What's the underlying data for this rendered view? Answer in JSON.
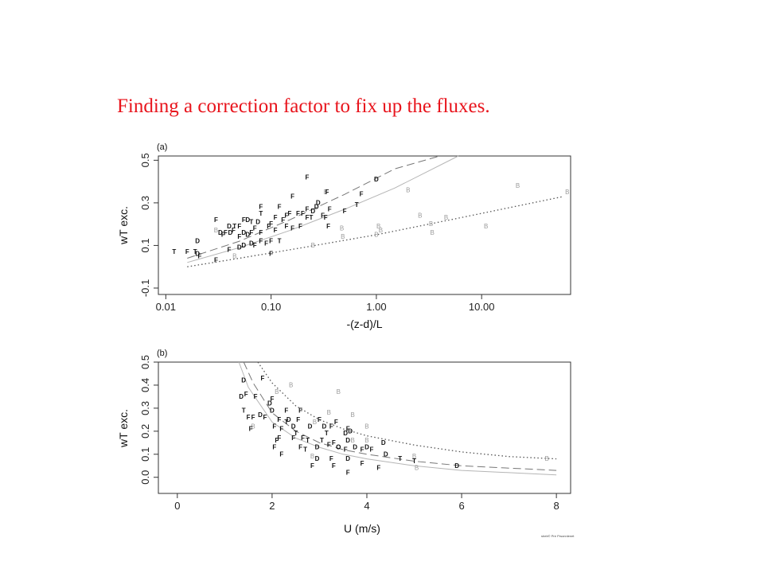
{
  "slide": {
    "title": "Finding a correction factor to fix up the fluxes.",
    "credit": "sheb© Pre Prsonnlenet"
  },
  "chart_data": [
    {
      "type": "scatter",
      "panel_label": "(a)",
      "xlabel": "-(z-d)/L",
      "ylabel": "wT exc.",
      "xscale": "log",
      "xlim": [
        0.0085,
        70
      ],
      "ylim": [
        -0.13,
        0.52
      ],
      "xticks": [
        0.01,
        0.1,
        1,
        10
      ],
      "xtick_labels": [
        "0.01",
        "0.10",
        "1.00",
        "10.00"
      ],
      "yticks": [
        -0.1,
        0.1,
        0.3,
        0.5
      ],
      "ytick_labels": [
        "-0.1",
        "0.1",
        "0.3",
        "0.5"
      ],
      "curves": [
        {
          "style": "dashed",
          "x": [
            0.016,
            0.05,
            0.15,
            0.5,
            1.5,
            4.0
          ],
          "y": [
            0.04,
            0.12,
            0.22,
            0.34,
            0.46,
            0.56
          ]
        },
        {
          "style": "solid",
          "x": [
            0.016,
            0.05,
            0.15,
            0.5,
            1.5,
            6.0
          ],
          "y": [
            0.02,
            0.09,
            0.17,
            0.27,
            0.37,
            0.53
          ]
        },
        {
          "style": "dotted",
          "x": [
            0.016,
            0.05,
            0.2,
            1.0,
            5.0,
            60
          ],
          "y": [
            0.0,
            0.04,
            0.09,
            0.15,
            0.22,
            0.33
          ]
        }
      ],
      "points": [
        {
          "x": 0.22,
          "y": 0.42,
          "m": "F"
        },
        {
          "x": 1.0,
          "y": 0.41,
          "m": "D"
        },
        {
          "x": 0.33,
          "y": 0.35,
          "m": "B"
        },
        {
          "x": 0.34,
          "y": 0.35,
          "m": "F"
        },
        {
          "x": 0.16,
          "y": 0.33,
          "m": "F"
        },
        {
          "x": 0.72,
          "y": 0.34,
          "m": "F"
        },
        {
          "x": 2.0,
          "y": 0.36,
          "m": "B"
        },
        {
          "x": 0.28,
          "y": 0.3,
          "m": "D"
        },
        {
          "x": 0.27,
          "y": 0.28,
          "m": "D"
        },
        {
          "x": 0.65,
          "y": 0.29,
          "m": "T"
        },
        {
          "x": 0.12,
          "y": 0.28,
          "m": "F"
        },
        {
          "x": 0.22,
          "y": 0.27,
          "m": "F"
        },
        {
          "x": 0.25,
          "y": 0.26,
          "m": "D"
        },
        {
          "x": 0.36,
          "y": 0.27,
          "m": "F"
        },
        {
          "x": 0.5,
          "y": 0.26,
          "m": "F"
        },
        {
          "x": 0.08,
          "y": 0.28,
          "m": "F"
        },
        {
          "x": 0.08,
          "y": 0.25,
          "m": "T"
        },
        {
          "x": 0.15,
          "y": 0.25,
          "m": "F"
        },
        {
          "x": 0.18,
          "y": 0.25,
          "m": "F"
        },
        {
          "x": 0.2,
          "y": 0.25,
          "m": "F"
        },
        {
          "x": 0.14,
          "y": 0.24,
          "m": "F"
        },
        {
          "x": 0.11,
          "y": 0.23,
          "m": "F"
        },
        {
          "x": 0.13,
          "y": 0.22,
          "m": "F"
        },
        {
          "x": 0.24,
          "y": 0.23,
          "m": "T"
        },
        {
          "x": 0.31,
          "y": 0.24,
          "m": "F"
        },
        {
          "x": 0.22,
          "y": 0.23,
          "m": "F"
        },
        {
          "x": 0.33,
          "y": 0.23,
          "m": "F"
        },
        {
          "x": 0.03,
          "y": 0.22,
          "m": "F"
        },
        {
          "x": 0.055,
          "y": 0.22,
          "m": "F"
        },
        {
          "x": 0.06,
          "y": 0.22,
          "m": "D"
        },
        {
          "x": 0.065,
          "y": 0.21,
          "m": "T"
        },
        {
          "x": 0.075,
          "y": 0.21,
          "m": "D"
        },
        {
          "x": 0.04,
          "y": 0.19,
          "m": "D"
        },
        {
          "x": 0.045,
          "y": 0.19,
          "m": "T"
        },
        {
          "x": 0.05,
          "y": 0.19,
          "m": "F"
        },
        {
          "x": 0.07,
          "y": 0.18,
          "m": "F"
        },
        {
          "x": 0.095,
          "y": 0.19,
          "m": "F"
        },
        {
          "x": 0.1,
          "y": 0.2,
          "m": "F"
        },
        {
          "x": 0.14,
          "y": 0.19,
          "m": "F"
        },
        {
          "x": 0.19,
          "y": 0.19,
          "m": "F"
        },
        {
          "x": 0.16,
          "y": 0.18,
          "m": "F"
        },
        {
          "x": 0.35,
          "y": 0.19,
          "m": "F"
        },
        {
          "x": 0.47,
          "y": 0.18,
          "m": "B"
        },
        {
          "x": 0.03,
          "y": 0.17,
          "m": "B"
        },
        {
          "x": 0.033,
          "y": 0.16,
          "m": "D"
        },
        {
          "x": 0.037,
          "y": 0.16,
          "m": "F"
        },
        {
          "x": 0.041,
          "y": 0.16,
          "m": "D"
        },
        {
          "x": 0.044,
          "y": 0.17,
          "m": "F"
        },
        {
          "x": 0.055,
          "y": 0.16,
          "m": "D"
        },
        {
          "x": 0.065,
          "y": 0.16,
          "m": "F"
        },
        {
          "x": 0.08,
          "y": 0.16,
          "m": "F"
        },
        {
          "x": 0.11,
          "y": 0.17,
          "m": "F"
        },
        {
          "x": 0.06,
          "y": 0.15,
          "m": "D"
        },
        {
          "x": 0.035,
          "y": 0.15,
          "m": "F"
        },
        {
          "x": 0.05,
          "y": 0.14,
          "m": "F"
        },
        {
          "x": 0.08,
          "y": 0.12,
          "m": "F"
        },
        {
          "x": 0.09,
          "y": 0.11,
          "m": "F"
        },
        {
          "x": 0.065,
          "y": 0.11,
          "m": "D"
        },
        {
          "x": 0.07,
          "y": 0.1,
          "m": "F"
        },
        {
          "x": 0.1,
          "y": 0.12,
          "m": "F"
        },
        {
          "x": 0.12,
          "y": 0.12,
          "m": "T"
        },
        {
          "x": 0.05,
          "y": 0.09,
          "m": "D"
        },
        {
          "x": 0.055,
          "y": 0.1,
          "m": "D"
        },
        {
          "x": 0.04,
          "y": 0.08,
          "m": "F"
        },
        {
          "x": 0.02,
          "y": 0.12,
          "m": "D"
        },
        {
          "x": 0.012,
          "y": 0.07,
          "m": "T"
        },
        {
          "x": 0.016,
          "y": 0.07,
          "m": "F"
        },
        {
          "x": 0.019,
          "y": 0.07,
          "m": "T"
        },
        {
          "x": 0.02,
          "y": 0.06,
          "m": "D"
        },
        {
          "x": 0.021,
          "y": 0.05,
          "m": "F"
        },
        {
          "x": 0.045,
          "y": 0.05,
          "m": "B"
        },
        {
          "x": 0.03,
          "y": 0.03,
          "m": "F"
        },
        {
          "x": 0.1,
          "y": 0.06,
          "m": "F"
        },
        {
          "x": 0.25,
          "y": 0.1,
          "m": "B"
        },
        {
          "x": 0.48,
          "y": 0.14,
          "m": "B"
        },
        {
          "x": 1.0,
          "y": 0.15,
          "m": "B"
        },
        {
          "x": 1.05,
          "y": 0.19,
          "m": "B"
        },
        {
          "x": 1.1,
          "y": 0.17,
          "m": "B"
        },
        {
          "x": 2.6,
          "y": 0.24,
          "m": "B"
        },
        {
          "x": 3.3,
          "y": 0.2,
          "m": "B"
        },
        {
          "x": 3.4,
          "y": 0.16,
          "m": "B"
        },
        {
          "x": 4.6,
          "y": 0.23,
          "m": "B"
        },
        {
          "x": 11,
          "y": 0.19,
          "m": "B"
        },
        {
          "x": 22,
          "y": 0.38,
          "m": "B"
        },
        {
          "x": 65,
          "y": 0.35,
          "m": "B"
        }
      ]
    },
    {
      "type": "scatter",
      "panel_label": "(b)",
      "xlabel": "U (m/s)",
      "ylabel": "wT exc.",
      "xlim": [
        -0.4,
        8.3
      ],
      "ylim": [
        -0.07,
        0.5
      ],
      "xticks": [
        0,
        2,
        4,
        6,
        8
      ],
      "xtick_labels": [
        "0",
        "2",
        "4",
        "6",
        "8"
      ],
      "yticks": [
        0.0,
        0.1,
        0.2,
        0.3,
        0.4,
        0.5
      ],
      "ytick_labels": [
        "0.0",
        "0.1",
        "0.2",
        "0.3",
        "0.4",
        "0.5"
      ],
      "curves": [
        {
          "style": "dotted",
          "x": [
            1.7,
            2.0,
            2.5,
            3.0,
            3.5,
            4.0,
            5.0,
            6.0,
            7.0,
            8.0
          ],
          "y": [
            0.5,
            0.41,
            0.31,
            0.25,
            0.21,
            0.18,
            0.14,
            0.11,
            0.09,
            0.08
          ]
        },
        {
          "style": "dashed",
          "x": [
            1.4,
            1.6,
            2.0,
            2.5,
            3.0,
            3.5,
            4.0,
            5.0,
            6.0,
            7.0,
            8.0
          ],
          "y": [
            0.5,
            0.41,
            0.28,
            0.2,
            0.15,
            0.12,
            0.1,
            0.07,
            0.05,
            0.04,
            0.03
          ]
        },
        {
          "style": "solid",
          "x": [
            1.3,
            1.5,
            2.0,
            2.5,
            3.0,
            3.5,
            4.0,
            5.0,
            6.0,
            7.0,
            8.0
          ],
          "y": [
            0.5,
            0.39,
            0.24,
            0.17,
            0.13,
            0.1,
            0.08,
            0.05,
            0.03,
            0.02,
            0.01
          ]
        }
      ],
      "points": [
        {
          "x": 1.4,
          "y": 0.42,
          "m": "D"
        },
        {
          "x": 1.8,
          "y": 0.43,
          "m": "F"
        },
        {
          "x": 2.4,
          "y": 0.4,
          "m": "B"
        },
        {
          "x": 2.1,
          "y": 0.37,
          "m": "B"
        },
        {
          "x": 3.4,
          "y": 0.37,
          "m": "B"
        },
        {
          "x": 1.35,
          "y": 0.35,
          "m": "D"
        },
        {
          "x": 1.45,
          "y": 0.36,
          "m": "F"
        },
        {
          "x": 1.65,
          "y": 0.35,
          "m": "F"
        },
        {
          "x": 2.0,
          "y": 0.34,
          "m": "F"
        },
        {
          "x": 1.95,
          "y": 0.32,
          "m": "D"
        },
        {
          "x": 1.4,
          "y": 0.29,
          "m": "T"
        },
        {
          "x": 2.0,
          "y": 0.29,
          "m": "D"
        },
        {
          "x": 2.3,
          "y": 0.29,
          "m": "F"
        },
        {
          "x": 2.6,
          "y": 0.29,
          "m": "F"
        },
        {
          "x": 3.2,
          "y": 0.28,
          "m": "B"
        },
        {
          "x": 3.7,
          "y": 0.27,
          "m": "B"
        },
        {
          "x": 1.5,
          "y": 0.26,
          "m": "F"
        },
        {
          "x": 1.6,
          "y": 0.26,
          "m": "F"
        },
        {
          "x": 1.75,
          "y": 0.27,
          "m": "D"
        },
        {
          "x": 1.85,
          "y": 0.26,
          "m": "F"
        },
        {
          "x": 2.15,
          "y": 0.25,
          "m": "F"
        },
        {
          "x": 2.35,
          "y": 0.25,
          "m": "D"
        },
        {
          "x": 2.55,
          "y": 0.25,
          "m": "F"
        },
        {
          "x": 3.0,
          "y": 0.25,
          "m": "F"
        },
        {
          "x": 3.35,
          "y": 0.24,
          "m": "F"
        },
        {
          "x": 2.3,
          "y": 0.24,
          "m": "T"
        },
        {
          "x": 2.9,
          "y": 0.24,
          "m": "B"
        },
        {
          "x": 1.6,
          "y": 0.22,
          "m": "B"
        },
        {
          "x": 1.55,
          "y": 0.21,
          "m": "F"
        },
        {
          "x": 2.05,
          "y": 0.22,
          "m": "F"
        },
        {
          "x": 2.2,
          "y": 0.21,
          "m": "F"
        },
        {
          "x": 2.45,
          "y": 0.22,
          "m": "D"
        },
        {
          "x": 2.8,
          "y": 0.22,
          "m": "D"
        },
        {
          "x": 3.1,
          "y": 0.22,
          "m": "D"
        },
        {
          "x": 3.25,
          "y": 0.22,
          "m": "F"
        },
        {
          "x": 3.6,
          "y": 0.21,
          "m": "F"
        },
        {
          "x": 3.65,
          "y": 0.2,
          "m": "D"
        },
        {
          "x": 4.0,
          "y": 0.22,
          "m": "B"
        },
        {
          "x": 2.5,
          "y": 0.19,
          "m": "T"
        },
        {
          "x": 3.15,
          "y": 0.19,
          "m": "T"
        },
        {
          "x": 3.55,
          "y": 0.19,
          "m": "D"
        },
        {
          "x": 2.1,
          "y": 0.16,
          "m": "F"
        },
        {
          "x": 2.15,
          "y": 0.17,
          "m": "F"
        },
        {
          "x": 2.45,
          "y": 0.17,
          "m": "F"
        },
        {
          "x": 2.65,
          "y": 0.17,
          "m": "F"
        },
        {
          "x": 2.75,
          "y": 0.16,
          "m": "T"
        },
        {
          "x": 3.05,
          "y": 0.16,
          "m": "T"
        },
        {
          "x": 3.3,
          "y": 0.15,
          "m": "F"
        },
        {
          "x": 3.6,
          "y": 0.16,
          "m": "D"
        },
        {
          "x": 3.7,
          "y": 0.16,
          "m": "B"
        },
        {
          "x": 4.0,
          "y": 0.16,
          "m": "B"
        },
        {
          "x": 4.35,
          "y": 0.15,
          "m": "D"
        },
        {
          "x": 2.05,
          "y": 0.13,
          "m": "F"
        },
        {
          "x": 2.6,
          "y": 0.13,
          "m": "F"
        },
        {
          "x": 2.7,
          "y": 0.12,
          "m": "T"
        },
        {
          "x": 2.95,
          "y": 0.13,
          "m": "D"
        },
        {
          "x": 3.2,
          "y": 0.14,
          "m": "F"
        },
        {
          "x": 3.4,
          "y": 0.13,
          "m": "O"
        },
        {
          "x": 3.55,
          "y": 0.12,
          "m": "F"
        },
        {
          "x": 3.75,
          "y": 0.13,
          "m": "D"
        },
        {
          "x": 3.9,
          "y": 0.12,
          "m": "F"
        },
        {
          "x": 4.0,
          "y": 0.13,
          "m": "D"
        },
        {
          "x": 4.1,
          "y": 0.12,
          "m": "F"
        },
        {
          "x": 2.2,
          "y": 0.1,
          "m": "F"
        },
        {
          "x": 2.85,
          "y": 0.09,
          "m": "B"
        },
        {
          "x": 2.95,
          "y": 0.08,
          "m": "D"
        },
        {
          "x": 3.25,
          "y": 0.08,
          "m": "F"
        },
        {
          "x": 3.6,
          "y": 0.08,
          "m": "D"
        },
        {
          "x": 4.4,
          "y": 0.1,
          "m": "D"
        },
        {
          "x": 4.7,
          "y": 0.08,
          "m": "T"
        },
        {
          "x": 5.0,
          "y": 0.09,
          "m": "B"
        },
        {
          "x": 5.0,
          "y": 0.07,
          "m": "T"
        },
        {
          "x": 2.85,
          "y": 0.05,
          "m": "F"
        },
        {
          "x": 3.3,
          "y": 0.05,
          "m": "F"
        },
        {
          "x": 3.9,
          "y": 0.06,
          "m": "F"
        },
        {
          "x": 5.05,
          "y": 0.04,
          "m": "B"
        },
        {
          "x": 4.25,
          "y": 0.04,
          "m": "F"
        },
        {
          "x": 5.9,
          "y": 0.05,
          "m": "D"
        },
        {
          "x": 3.6,
          "y": 0.02,
          "m": "F"
        },
        {
          "x": 7.8,
          "y": 0.08,
          "m": "B"
        }
      ]
    }
  ]
}
